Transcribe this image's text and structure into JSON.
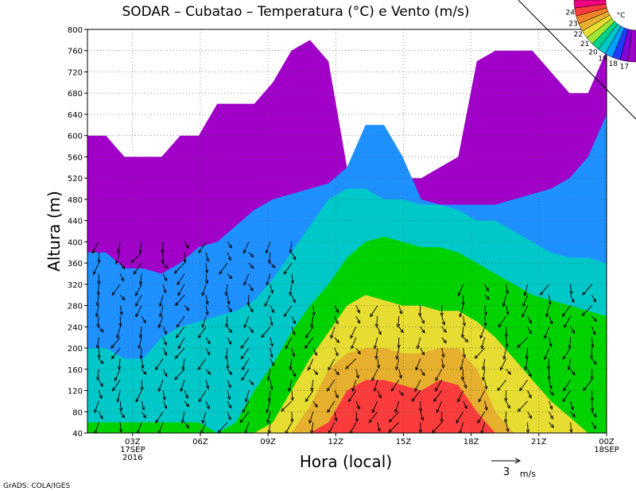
{
  "chart_data": {
    "type": "heatmap",
    "title": "SODAR – Cubatao – Temperatura (°C) e Vento (m/s)",
    "xlabel": "Hora (local)",
    "ylabel": "Altura (m)",
    "ylim": [
      40,
      800
    ],
    "y_ticks": [
      "40",
      "80",
      "120",
      "160",
      "200",
      "240",
      "280",
      "320",
      "360",
      "400",
      "440",
      "480",
      "520",
      "560",
      "600",
      "640",
      "680",
      "720",
      "760",
      "800"
    ],
    "x_ticks": [
      {
        "label": "03Z",
        "sub1": "17SEP",
        "sub2": "2016",
        "hour": 3
      },
      {
        "label": "06Z",
        "sub1": "",
        "sub2": "",
        "hour": 6
      },
      {
        "label": "09Z",
        "sub1": "",
        "sub2": "",
        "hour": 9
      },
      {
        "label": "12Z",
        "sub1": "",
        "sub2": "",
        "hour": 12
      },
      {
        "label": "15Z",
        "sub1": "",
        "sub2": "",
        "hour": 15
      },
      {
        "label": "18Z",
        "sub1": "",
        "sub2": "",
        "hour": 18
      },
      {
        "label": "21Z",
        "sub1": "",
        "sub2": "",
        "hour": 21
      },
      {
        "label": "00Z",
        "sub1": "18SEP",
        "sub2": "",
        "hour": 24
      }
    ],
    "xlim_hours": [
      1,
      24
    ],
    "colorbar": {
      "unit": "°C",
      "labels": [
        "17",
        "18",
        "19",
        "20",
        "21",
        "22",
        "23",
        "24"
      ],
      "colors": [
        "#a000c8",
        "#8200dc",
        "#1e3cff",
        "#00a0ff",
        "#00c8c8",
        "#00d28c",
        "#a0e632",
        "#e6dc32",
        "#e6af2d",
        "#f08228",
        "#fa3c3c",
        "#f00082"
      ]
    },
    "temperature_zones": [
      {
        "temp": "<17",
        "color": "#a000c8",
        "top": [
          600,
          600,
          560,
          560,
          560,
          600,
          600,
          660,
          660,
          660,
          700,
          760,
          780,
          740,
          540,
          540,
          540,
          520,
          520,
          540,
          560,
          740,
          760,
          760,
          760,
          720,
          680,
          680,
          760
        ]
      },
      {
        "temp": "17-18",
        "color": "#1e90ff",
        "top": [
          380,
          380,
          350,
          350,
          340,
          360,
          390,
          400,
          430,
          460,
          480,
          490,
          500,
          510,
          540,
          620,
          620,
          560,
          480,
          470,
          470,
          470,
          470,
          480,
          490,
          500,
          520,
          560,
          640
        ]
      },
      {
        "temp": "18-19",
        "color": "#00c8c8",
        "top": [
          200,
          200,
          180,
          180,
          220,
          240,
          250,
          260,
          270,
          290,
          330,
          380,
          430,
          480,
          500,
          500,
          480,
          480,
          470,
          470,
          460,
          440,
          440,
          420,
          400,
          380,
          370,
          370,
          360
        ]
      },
      {
        "temp": "19-20",
        "color": "#00d200",
        "top": [
          60,
          60,
          60,
          60,
          60,
          60,
          60,
          40,
          60,
          120,
          170,
          230,
          280,
          320,
          370,
          400,
          410,
          400,
          390,
          390,
          380,
          360,
          340,
          320,
          300,
          290,
          280,
          270,
          260
        ]
      },
      {
        "temp": "20-21",
        "color": "#e6dc32",
        "top": [
          40,
          40,
          40,
          40,
          40,
          40,
          40,
          40,
          40,
          40,
          60,
          120,
          180,
          230,
          280,
          300,
          290,
          280,
          280,
          270,
          270,
          250,
          220,
          180,
          140,
          100,
          70,
          40,
          40
        ]
      },
      {
        "temp": "21-22",
        "color": "#e6af2d",
        "top": [
          40,
          40,
          40,
          40,
          40,
          40,
          40,
          40,
          40,
          40,
          40,
          40,
          90,
          160,
          190,
          200,
          200,
          190,
          190,
          200,
          200,
          160,
          80,
          40,
          40,
          40,
          40,
          40,
          40
        ]
      },
      {
        "temp": ">22",
        "color": "#fa3c3c",
        "top": [
          40,
          40,
          40,
          40,
          40,
          40,
          40,
          40,
          40,
          40,
          40,
          40,
          40,
          60,
          120,
          140,
          140,
          130,
          120,
          140,
          130,
          80,
          40,
          40,
          40,
          40,
          40,
          40,
          40
        ]
      }
    ],
    "wind_scale_label": "3",
    "wind_scale_unit": "m/s"
  },
  "footer": {
    "credit": "GrADS: COLA/IGES"
  }
}
